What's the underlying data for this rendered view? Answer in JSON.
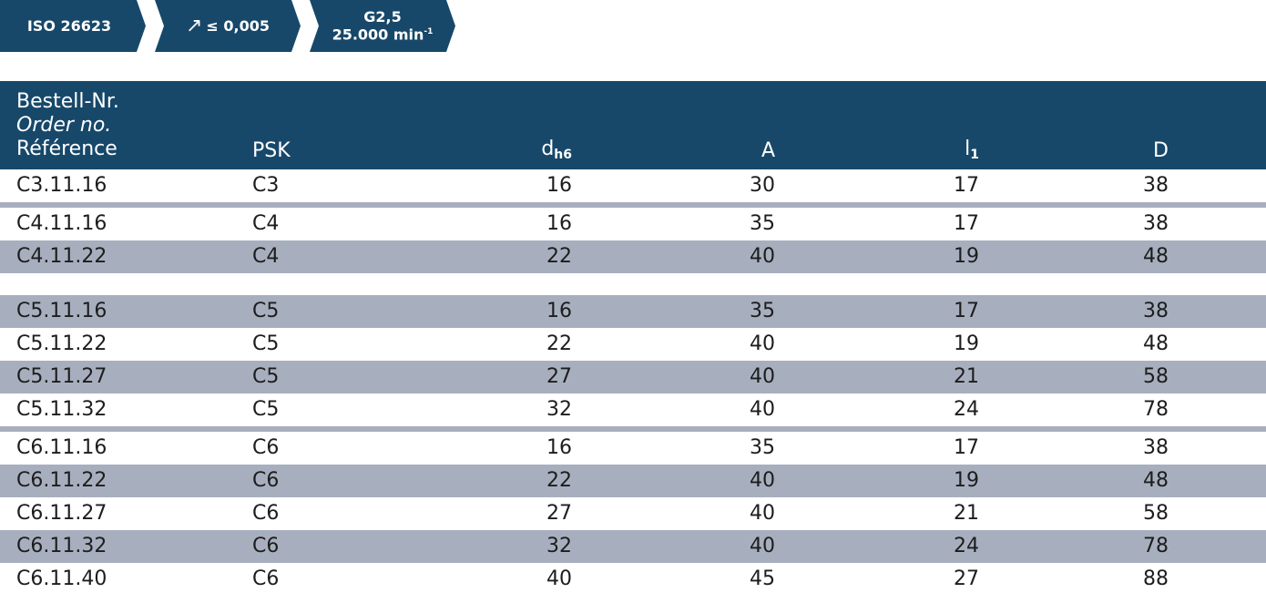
{
  "badges": {
    "standard": "ISO 26623",
    "runout_symbol": "↗",
    "runout_text": "≤ 0,005",
    "balance_grade": "G2,5",
    "speed_value": "25.000 min",
    "speed_exp": "-1"
  },
  "table": {
    "headers": {
      "order_de": "Bestell-Nr.",
      "order_en": "Order no.",
      "order_fr": "Référence",
      "psk": "PSK",
      "d": "d",
      "d_sub": "h6",
      "a": "A",
      "l": "l",
      "l_sub": "1",
      "D": "D"
    },
    "rows": [
      {
        "order": "C3.11.16",
        "psk": "C3",
        "d": "16",
        "a": "30",
        "l": "17",
        "D": "38"
      },
      {
        "order": "C4.11.16",
        "psk": "C4",
        "d": "16",
        "a": "35",
        "l": "17",
        "D": "38"
      },
      {
        "order": "C4.11.22",
        "psk": "C4",
        "d": "22",
        "a": "40",
        "l": "19",
        "D": "48"
      },
      {
        "order": "C5.11.16",
        "psk": "C5",
        "d": "16",
        "a": "35",
        "l": "17",
        "D": "38"
      },
      {
        "order": "C5.11.22",
        "psk": "C5",
        "d": "22",
        "a": "40",
        "l": "19",
        "D": "48"
      },
      {
        "order": "C5.11.27",
        "psk": "C5",
        "d": "27",
        "a": "40",
        "l": "21",
        "D": "58"
      },
      {
        "order": "C5.11.32",
        "psk": "C5",
        "d": "32",
        "a": "40",
        "l": "24",
        "D": "78"
      },
      {
        "order": "C6.11.16",
        "psk": "C6",
        "d": "16",
        "a": "35",
        "l": "17",
        "D": "38"
      },
      {
        "order": "C6.11.22",
        "psk": "C6",
        "d": "22",
        "a": "40",
        "l": "19",
        "D": "48"
      },
      {
        "order": "C6.11.27",
        "psk": "C6",
        "d": "27",
        "a": "40",
        "l": "21",
        "D": "58"
      },
      {
        "order": "C6.11.32",
        "psk": "C6",
        "d": "32",
        "a": "40",
        "l": "24",
        "D": "78"
      },
      {
        "order": "C6.11.40",
        "psk": "C6",
        "d": "40",
        "a": "45",
        "l": "27",
        "D": "88"
      }
    ]
  },
  "colors": {
    "header_bg": "#17486a",
    "row_alt_bg": "#a7afbf"
  }
}
